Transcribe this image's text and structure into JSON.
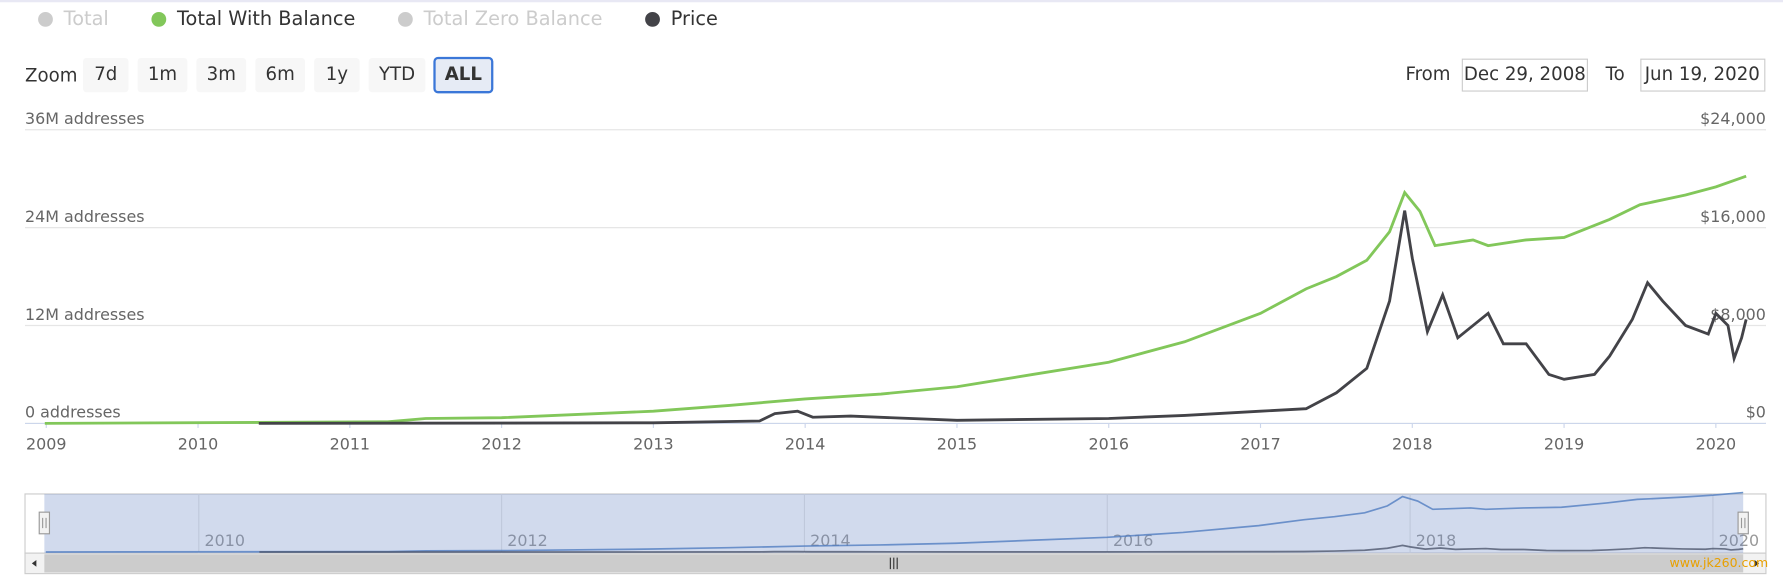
{
  "chart_data": {
    "type": "line",
    "zoom_label": "Zoom",
    "zoom_buttons": [
      "7d",
      "1m",
      "3m",
      "6m",
      "1y",
      "YTD",
      "ALL"
    ],
    "selected_zoom": "ALL",
    "from_label": "From",
    "from_date": "Dec 29, 2008",
    "to_label": "To",
    "to_date": "Jun 19, 2020",
    "watermark": "www.jk260.com",
    "grid": true,
    "xlim": [
      2008.86,
      2020.33
    ],
    "xticks": [
      2009,
      2010,
      2011,
      2012,
      2013,
      2014,
      2015,
      2016,
      2017,
      2018,
      2019,
      2020
    ],
    "ylim": [
      0,
      36000000
    ],
    "yticks": [
      {
        "value": 0,
        "label": "0 addresses"
      },
      {
        "value": 12000000,
        "label": "12M addresses"
      },
      {
        "value": 24000000,
        "label": "24M addresses"
      },
      {
        "value": 36000000,
        "label": "36M addresses"
      }
    ],
    "y2lim": [
      0,
      24000
    ],
    "y2ticks": [
      {
        "value": 0,
        "label": "$0"
      },
      {
        "value": 8000,
        "label": "$8,000"
      },
      {
        "value": 16000,
        "label": "$16,000"
      },
      {
        "value": 24000,
        "label": "$24,000"
      }
    ],
    "navigator_xlim": [
      2008.98,
      2020.2
    ],
    "navigator_xticks": [
      2010,
      2012,
      2014,
      2016,
      2018,
      2020
    ],
    "series": [
      {
        "name": "Total",
        "color": "#cccccc",
        "visible": false
      },
      {
        "name": "Total With Balance",
        "color": "#82c75a",
        "visible": true,
        "x": [
          2008.99,
          2011.25,
          2011.5,
          2012,
          2013,
          2013.5,
          2014,
          2014.5,
          2015,
          2015.5,
          2016,
          2016.5,
          2017,
          2017.3,
          2017.5,
          2017.7,
          2017.85,
          2017.95,
          2018.05,
          2018.15,
          2018.4,
          2018.5,
          2018.75,
          2019,
          2019.3,
          2019.5,
          2019.8,
          2020,
          2020.2
        ],
        "values": [
          0,
          200000,
          600000,
          700000,
          1500000,
          2200000,
          3000000,
          3600000,
          4500000,
          6000000,
          7500000,
          10000000,
          13500000,
          16500000,
          18000000,
          20000000,
          23500000,
          28300000,
          26000000,
          21800000,
          22500000,
          21800000,
          22500000,
          22800000,
          25000000,
          26800000,
          28000000,
          29000000,
          30300000
        ]
      },
      {
        "name": "Total Zero Balance",
        "color": "#cccccc",
        "visible": false
      },
      {
        "name": "Price",
        "color": "#434348",
        "visible": true,
        "axis": "y2",
        "x": [
          2010.4,
          2013,
          2013.7,
          2013.8,
          2013.95,
          2014.05,
          2014.3,
          2015,
          2016,
          2016.5,
          2017,
          2017.3,
          2017.5,
          2017.7,
          2017.85,
          2017.95,
          2018.0,
          2018.1,
          2018.2,
          2018.3,
          2018.5,
          2018.6,
          2018.75,
          2018.9,
          2019.0,
          2019.2,
          2019.3,
          2019.45,
          2019.55,
          2019.65,
          2019.8,
          2019.95,
          2020.0,
          2020.08,
          2020.12,
          2020.17,
          2020.2
        ],
        "values": [
          0,
          50,
          200,
          800,
          1000,
          500,
          600,
          250,
          400,
          650,
          1000,
          1200,
          2500,
          4500,
          10000,
          17400,
          13500,
          7500,
          10500,
          7000,
          9000,
          6500,
          6500,
          4000,
          3600,
          4000,
          5500,
          8500,
          11500,
          10000,
          8000,
          7300,
          9000,
          8000,
          5300,
          7000,
          8500
        ]
      }
    ]
  }
}
